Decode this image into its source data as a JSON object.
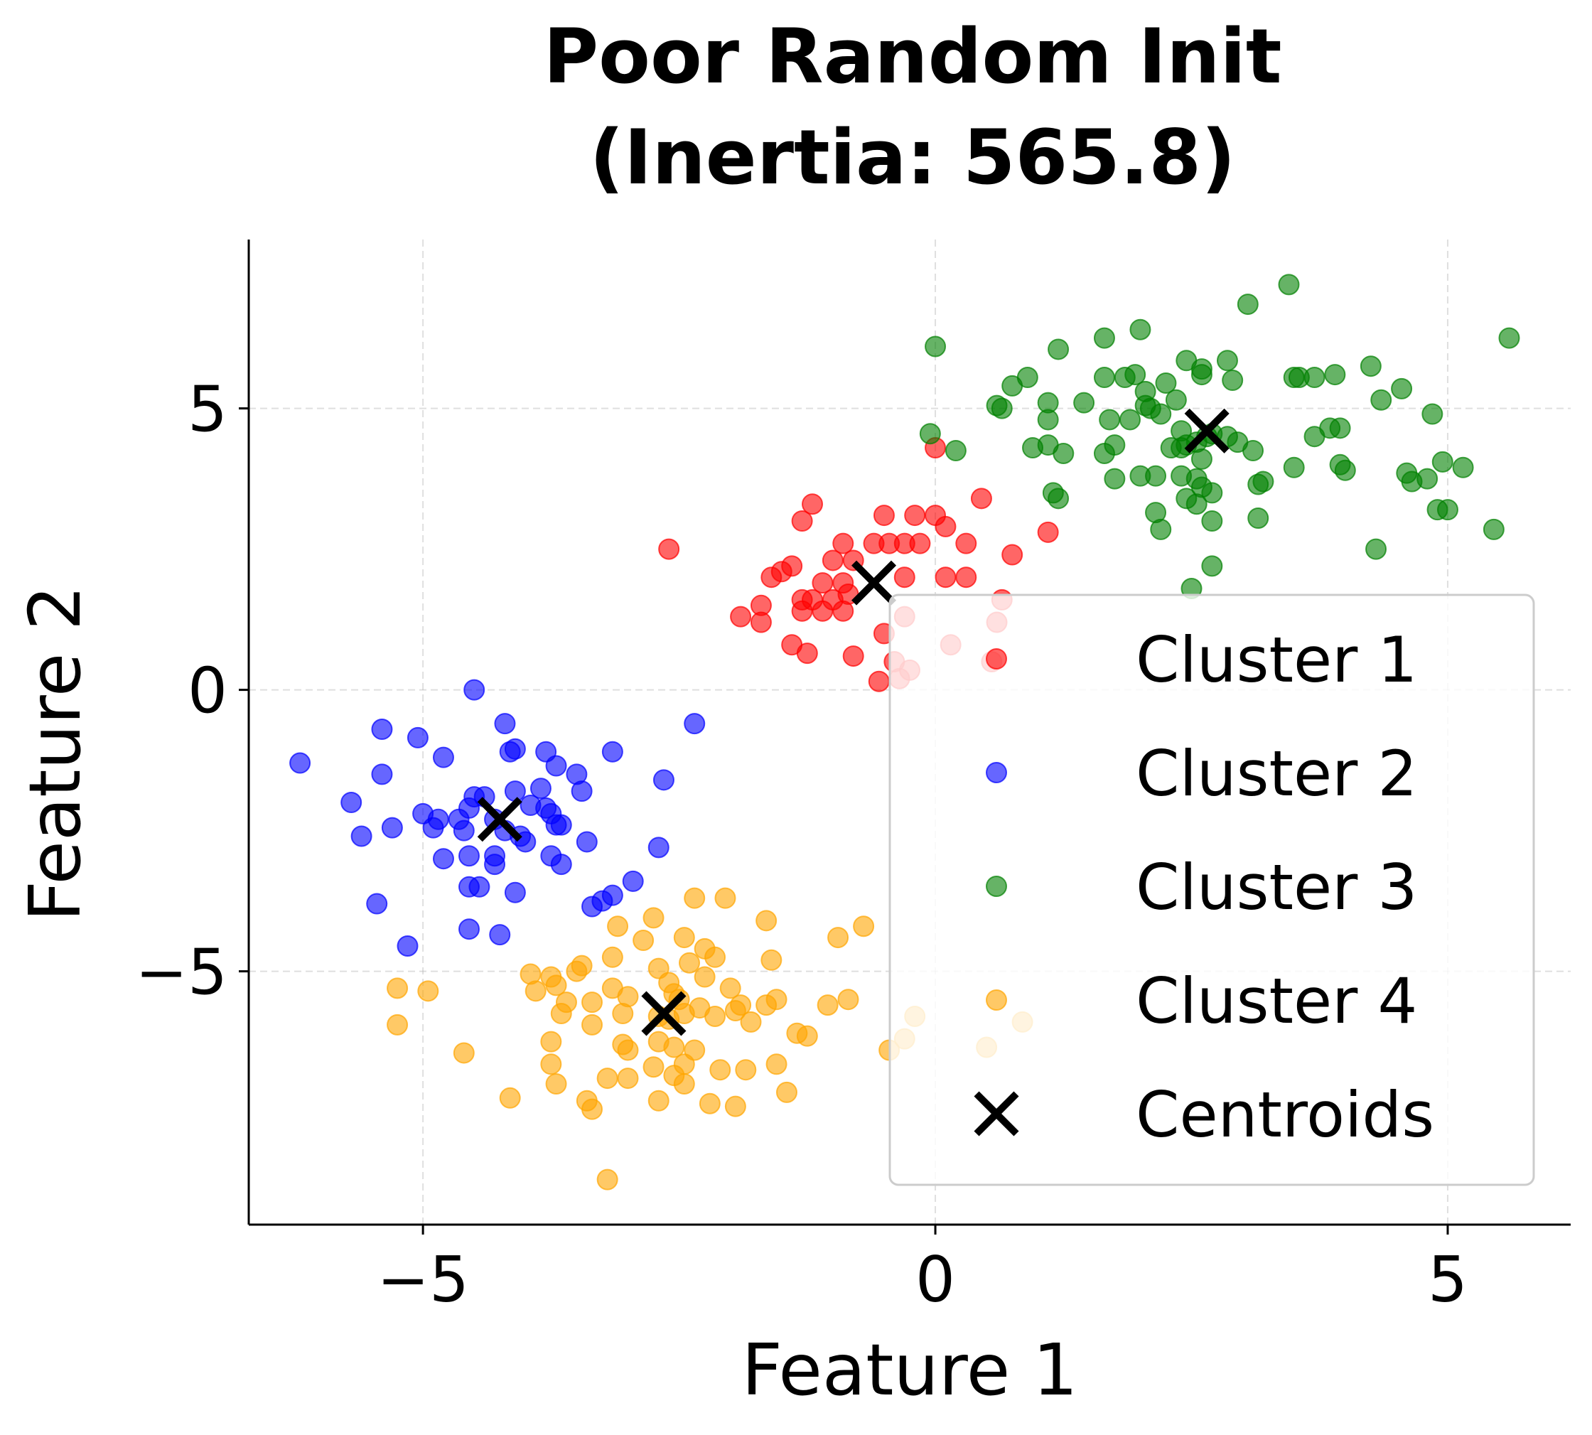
{
  "chart_data": {
    "type": "scatter",
    "title": "Poor Random Init\n(Inertia: 565.8)",
    "xlabel": "Feature 1",
    "ylabel": "Feature 2",
    "xlim": [
      -6.7,
      6.2
    ],
    "ylim": [
      -9.5,
      8.0
    ],
    "xticks": [
      -5,
      0,
      5
    ],
    "yticks": [
      -5,
      0,
      5
    ],
    "xtick_labels": [
      "−5",
      "0",
      "5"
    ],
    "ytick_labels": [
      "−5",
      "0",
      "5"
    ],
    "grid": true,
    "legend_position": "lower right",
    "series": [
      {
        "name": "Cluster 1",
        "color": "#ff0000",
        "points": [
          [
            -2.6,
            2.5
          ],
          [
            -1.2,
            3.3
          ],
          [
            -1.3,
            3.0
          ],
          [
            -0.5,
            3.1
          ],
          [
            -0.2,
            3.1
          ],
          [
            0.0,
            3.1
          ],
          [
            0.1,
            2.9
          ],
          [
            0.45,
            3.4
          ],
          [
            -0.9,
            2.6
          ],
          [
            -0.6,
            2.6
          ],
          [
            -0.45,
            2.6
          ],
          [
            -0.3,
            2.6
          ],
          [
            -0.15,
            2.6
          ],
          [
            0.3,
            2.6
          ],
          [
            0.75,
            2.4
          ],
          [
            1.1,
            2.8
          ],
          [
            -1.0,
            2.3
          ],
          [
            -0.8,
            2.3
          ],
          [
            -1.4,
            2.2
          ],
          [
            -1.5,
            2.1
          ],
          [
            -1.6,
            2.0
          ],
          [
            -0.3,
            2.0
          ],
          [
            0.1,
            2.0
          ],
          [
            0.3,
            2.0
          ],
          [
            -1.1,
            1.9
          ],
          [
            -0.9,
            1.9
          ],
          [
            -1.2,
            1.6
          ],
          [
            -1.0,
            1.6
          ],
          [
            -0.85,
            1.7
          ],
          [
            -1.3,
            1.6
          ],
          [
            -1.1,
            1.4
          ],
          [
            -0.9,
            1.4
          ],
          [
            -1.3,
            1.4
          ],
          [
            -1.7,
            1.5
          ],
          [
            -1.9,
            1.3
          ],
          [
            -1.7,
            1.2
          ],
          [
            0.65,
            1.6
          ],
          [
            -1.4,
            0.8
          ],
          [
            -1.25,
            0.65
          ],
          [
            -0.8,
            0.6
          ],
          [
            -0.5,
            1.0
          ],
          [
            -0.3,
            1.3
          ],
          [
            0.15,
            0.8
          ],
          [
            0.55,
            0.5
          ],
          [
            -0.55,
            0.15
          ],
          [
            -0.35,
            0.2
          ],
          [
            -0.25,
            0.35
          ],
          [
            0.0,
            4.3
          ],
          [
            0.6,
            1.2
          ],
          [
            -0.4,
            0.5
          ]
        ]
      },
      {
        "name": "Cluster 2",
        "color": "#0000ff",
        "points": [
          [
            -6.2,
            -1.3
          ],
          [
            -5.4,
            -0.7
          ],
          [
            -5.05,
            -0.85
          ],
          [
            -4.5,
            0.0
          ],
          [
            -4.2,
            -0.6
          ],
          [
            -4.15,
            -1.1
          ],
          [
            -4.1,
            -1.05
          ],
          [
            -3.8,
            -1.1
          ],
          [
            -3.7,
            -1.35
          ],
          [
            -3.15,
            -1.1
          ],
          [
            -2.35,
            -0.6
          ],
          [
            -2.65,
            -1.6
          ],
          [
            -4.8,
            -1.2
          ],
          [
            -5.4,
            -1.5
          ],
          [
            -3.5,
            -1.5
          ],
          [
            -3.45,
            -1.8
          ],
          [
            -5.7,
            -2.0
          ],
          [
            -5.0,
            -2.2
          ],
          [
            -4.85,
            -2.3
          ],
          [
            -4.65,
            -2.3
          ],
          [
            -4.55,
            -2.1
          ],
          [
            -4.5,
            -1.9
          ],
          [
            -4.4,
            -1.9
          ],
          [
            -4.3,
            -2.3
          ],
          [
            -4.2,
            -2.5
          ],
          [
            -4.1,
            -1.8
          ],
          [
            -4.05,
            -2.6
          ],
          [
            -4.0,
            -2.7
          ],
          [
            -3.95,
            -2.05
          ],
          [
            -3.85,
            -1.75
          ],
          [
            -3.8,
            -2.1
          ],
          [
            -3.75,
            -2.2
          ],
          [
            -3.7,
            -2.4
          ],
          [
            -3.65,
            -2.4
          ],
          [
            -4.6,
            -2.5
          ],
          [
            -4.55,
            -2.95
          ],
          [
            -4.3,
            -2.95
          ],
          [
            -4.3,
            -3.1
          ],
          [
            -5.6,
            -2.6
          ],
          [
            -5.3,
            -2.45
          ],
          [
            -4.9,
            -2.45
          ],
          [
            -4.8,
            -3.0
          ],
          [
            -3.75,
            -2.95
          ],
          [
            -3.65,
            -3.1
          ],
          [
            -3.4,
            -2.7
          ],
          [
            -2.7,
            -2.8
          ],
          [
            -4.55,
            -3.5
          ],
          [
            -4.45,
            -3.5
          ],
          [
            -4.1,
            -3.6
          ],
          [
            -3.35,
            -3.85
          ],
          [
            -3.25,
            -3.75
          ],
          [
            -3.15,
            -3.65
          ],
          [
            -2.95,
            -3.4
          ],
          [
            -5.45,
            -3.8
          ],
          [
            -4.55,
            -4.25
          ],
          [
            -4.25,
            -4.35
          ],
          [
            -5.15,
            -4.55
          ]
        ]
      },
      {
        "name": "Cluster 3",
        "color": "#008000",
        "points": [
          [
            0.0,
            6.1
          ],
          [
            1.2,
            6.05
          ],
          [
            1.65,
            6.25
          ],
          [
            2.0,
            6.4
          ],
          [
            3.05,
            6.85
          ],
          [
            3.45,
            7.2
          ],
          [
            5.6,
            6.25
          ],
          [
            0.9,
            5.55
          ],
          [
            0.75,
            5.4
          ],
          [
            1.65,
            5.55
          ],
          [
            1.85,
            5.55
          ],
          [
            1.95,
            5.6
          ],
          [
            2.05,
            5.3
          ],
          [
            2.25,
            5.45
          ],
          [
            2.45,
            5.85
          ],
          [
            2.6,
            5.6
          ],
          [
            2.6,
            5.7
          ],
          [
            2.85,
            5.85
          ],
          [
            2.9,
            5.5
          ],
          [
            3.5,
            5.55
          ],
          [
            3.55,
            5.55
          ],
          [
            3.7,
            5.55
          ],
          [
            3.9,
            5.6
          ],
          [
            4.25,
            5.75
          ],
          [
            4.55,
            5.35
          ],
          [
            4.35,
            5.15
          ],
          [
            4.85,
            4.9
          ],
          [
            1.45,
            5.1
          ],
          [
            1.1,
            5.1
          ],
          [
            2.05,
            5.05
          ],
          [
            2.1,
            5.0
          ],
          [
            2.35,
            5.15
          ],
          [
            0.6,
            5.05
          ],
          [
            0.65,
            5.0
          ],
          [
            1.1,
            4.8
          ],
          [
            1.7,
            4.8
          ],
          [
            1.9,
            4.8
          ],
          [
            2.2,
            4.9
          ],
          [
            2.4,
            4.6
          ],
          [
            2.45,
            4.35
          ],
          [
            2.55,
            4.4
          ],
          [
            2.65,
            4.5
          ],
          [
            2.7,
            4.55
          ],
          [
            2.85,
            4.5
          ],
          [
            2.95,
            4.4
          ],
          [
            3.1,
            4.25
          ],
          [
            3.7,
            4.5
          ],
          [
            3.85,
            4.65
          ],
          [
            3.95,
            4.65
          ],
          [
            -0.05,
            4.55
          ],
          [
            0.2,
            4.25
          ],
          [
            0.95,
            4.3
          ],
          [
            1.1,
            4.35
          ],
          [
            1.25,
            4.2
          ],
          [
            1.65,
            4.2
          ],
          [
            1.75,
            4.35
          ],
          [
            2.3,
            4.3
          ],
          [
            2.4,
            4.3
          ],
          [
            2.6,
            4.1
          ],
          [
            3.95,
            4.0
          ],
          [
            4.0,
            3.9
          ],
          [
            4.95,
            4.05
          ],
          [
            5.15,
            3.95
          ],
          [
            3.5,
            3.95
          ],
          [
            4.6,
            3.85
          ],
          [
            4.65,
            3.7
          ],
          [
            4.8,
            3.75
          ],
          [
            2.0,
            3.8
          ],
          [
            2.15,
            3.8
          ],
          [
            2.4,
            3.8
          ],
          [
            2.55,
            3.75
          ],
          [
            3.15,
            3.65
          ],
          [
            3.2,
            3.7
          ],
          [
            1.75,
            3.75
          ],
          [
            1.15,
            3.5
          ],
          [
            1.2,
            3.4
          ],
          [
            2.45,
            3.4
          ],
          [
            2.6,
            3.6
          ],
          [
            2.7,
            3.5
          ],
          [
            2.55,
            3.3
          ],
          [
            2.15,
            3.15
          ],
          [
            2.2,
            2.85
          ],
          [
            2.7,
            3.0
          ],
          [
            3.15,
            3.05
          ],
          [
            4.9,
            3.2
          ],
          [
            5.0,
            3.2
          ],
          [
            5.45,
            2.85
          ],
          [
            4.3,
            2.5
          ],
          [
            2.7,
            2.2
          ],
          [
            2.5,
            1.8
          ]
        ]
      },
      {
        "name": "Cluster 4",
        "color": "#ffa500",
        "points": [
          [
            -2.35,
            -3.7
          ],
          [
            -2.05,
            -3.7
          ],
          [
            -3.1,
            -4.2
          ],
          [
            -2.75,
            -4.05
          ],
          [
            -2.45,
            -4.4
          ],
          [
            -1.65,
            -4.1
          ],
          [
            -0.95,
            -4.4
          ],
          [
            -0.7,
            -4.2
          ],
          [
            -2.85,
            -4.45
          ],
          [
            -2.25,
            -4.6
          ],
          [
            -2.15,
            -4.75
          ],
          [
            -1.6,
            -4.8
          ],
          [
            -3.15,
            -4.75
          ],
          [
            -3.45,
            -4.9
          ],
          [
            -3.5,
            -5.0
          ],
          [
            -3.75,
            -5.1
          ],
          [
            -3.7,
            -5.25
          ],
          [
            -3.95,
            -5.05
          ],
          [
            -3.9,
            -5.35
          ],
          [
            -2.7,
            -4.95
          ],
          [
            -2.6,
            -5.2
          ],
          [
            -2.55,
            -5.4
          ],
          [
            -2.5,
            -5.5
          ],
          [
            -2.4,
            -4.85
          ],
          [
            -2.25,
            -5.1
          ],
          [
            -2.0,
            -5.3
          ],
          [
            -1.9,
            -5.6
          ],
          [
            -1.65,
            -5.6
          ],
          [
            -1.55,
            -5.5
          ],
          [
            -1.05,
            -5.6
          ],
          [
            -0.85,
            -5.5
          ],
          [
            -3.15,
            -5.3
          ],
          [
            -3.35,
            -5.55
          ],
          [
            -3.6,
            -5.55
          ],
          [
            -3.65,
            -5.75
          ],
          [
            -3.0,
            -5.45
          ],
          [
            -3.05,
            -5.75
          ],
          [
            -2.7,
            -5.8
          ],
          [
            -2.6,
            -5.85
          ],
          [
            -2.45,
            -5.75
          ],
          [
            -2.3,
            -5.65
          ],
          [
            -2.15,
            -5.8
          ],
          [
            -1.95,
            -5.7
          ],
          [
            -1.8,
            -5.9
          ],
          [
            -1.35,
            -6.1
          ],
          [
            -1.25,
            -6.15
          ],
          [
            -3.35,
            -5.95
          ],
          [
            -3.05,
            -6.3
          ],
          [
            -3.0,
            -6.4
          ],
          [
            -2.7,
            -6.25
          ],
          [
            -2.55,
            -6.35
          ],
          [
            -2.35,
            -6.4
          ],
          [
            -3.75,
            -6.25
          ],
          [
            -3.75,
            -6.65
          ],
          [
            -2.75,
            -6.7
          ],
          [
            -2.55,
            -6.85
          ],
          [
            -2.45,
            -6.65
          ],
          [
            -2.1,
            -6.75
          ],
          [
            -1.85,
            -6.75
          ],
          [
            -1.55,
            -6.65
          ],
          [
            -3.2,
            -6.9
          ],
          [
            -3.0,
            -6.9
          ],
          [
            -2.45,
            -7.0
          ],
          [
            -4.6,
            -6.45
          ],
          [
            -3.7,
            -7.0
          ],
          [
            -3.4,
            -7.3
          ],
          [
            -3.35,
            -7.45
          ],
          [
            -2.7,
            -7.3
          ],
          [
            -2.2,
            -7.35
          ],
          [
            -1.95,
            -7.4
          ],
          [
            -1.45,
            -7.15
          ],
          [
            -4.15,
            -7.25
          ],
          [
            -5.25,
            -5.3
          ],
          [
            -4.95,
            -5.35
          ],
          [
            -5.25,
            -5.95
          ],
          [
            -3.2,
            -8.7
          ],
          [
            -0.45,
            -6.4
          ],
          [
            0.85,
            -5.9
          ],
          [
            -0.2,
            -5.8
          ],
          [
            -0.3,
            -6.2
          ],
          [
            0.5,
            -6.35
          ]
        ]
      }
    ],
    "centroids": {
      "name": "Centroids",
      "color": "#000000",
      "points": [
        [
          -4.25,
          -2.3
        ],
        [
          -0.6,
          1.9
        ],
        [
          2.65,
          4.6
        ],
        [
          -2.65,
          -5.75
        ]
      ]
    }
  }
}
